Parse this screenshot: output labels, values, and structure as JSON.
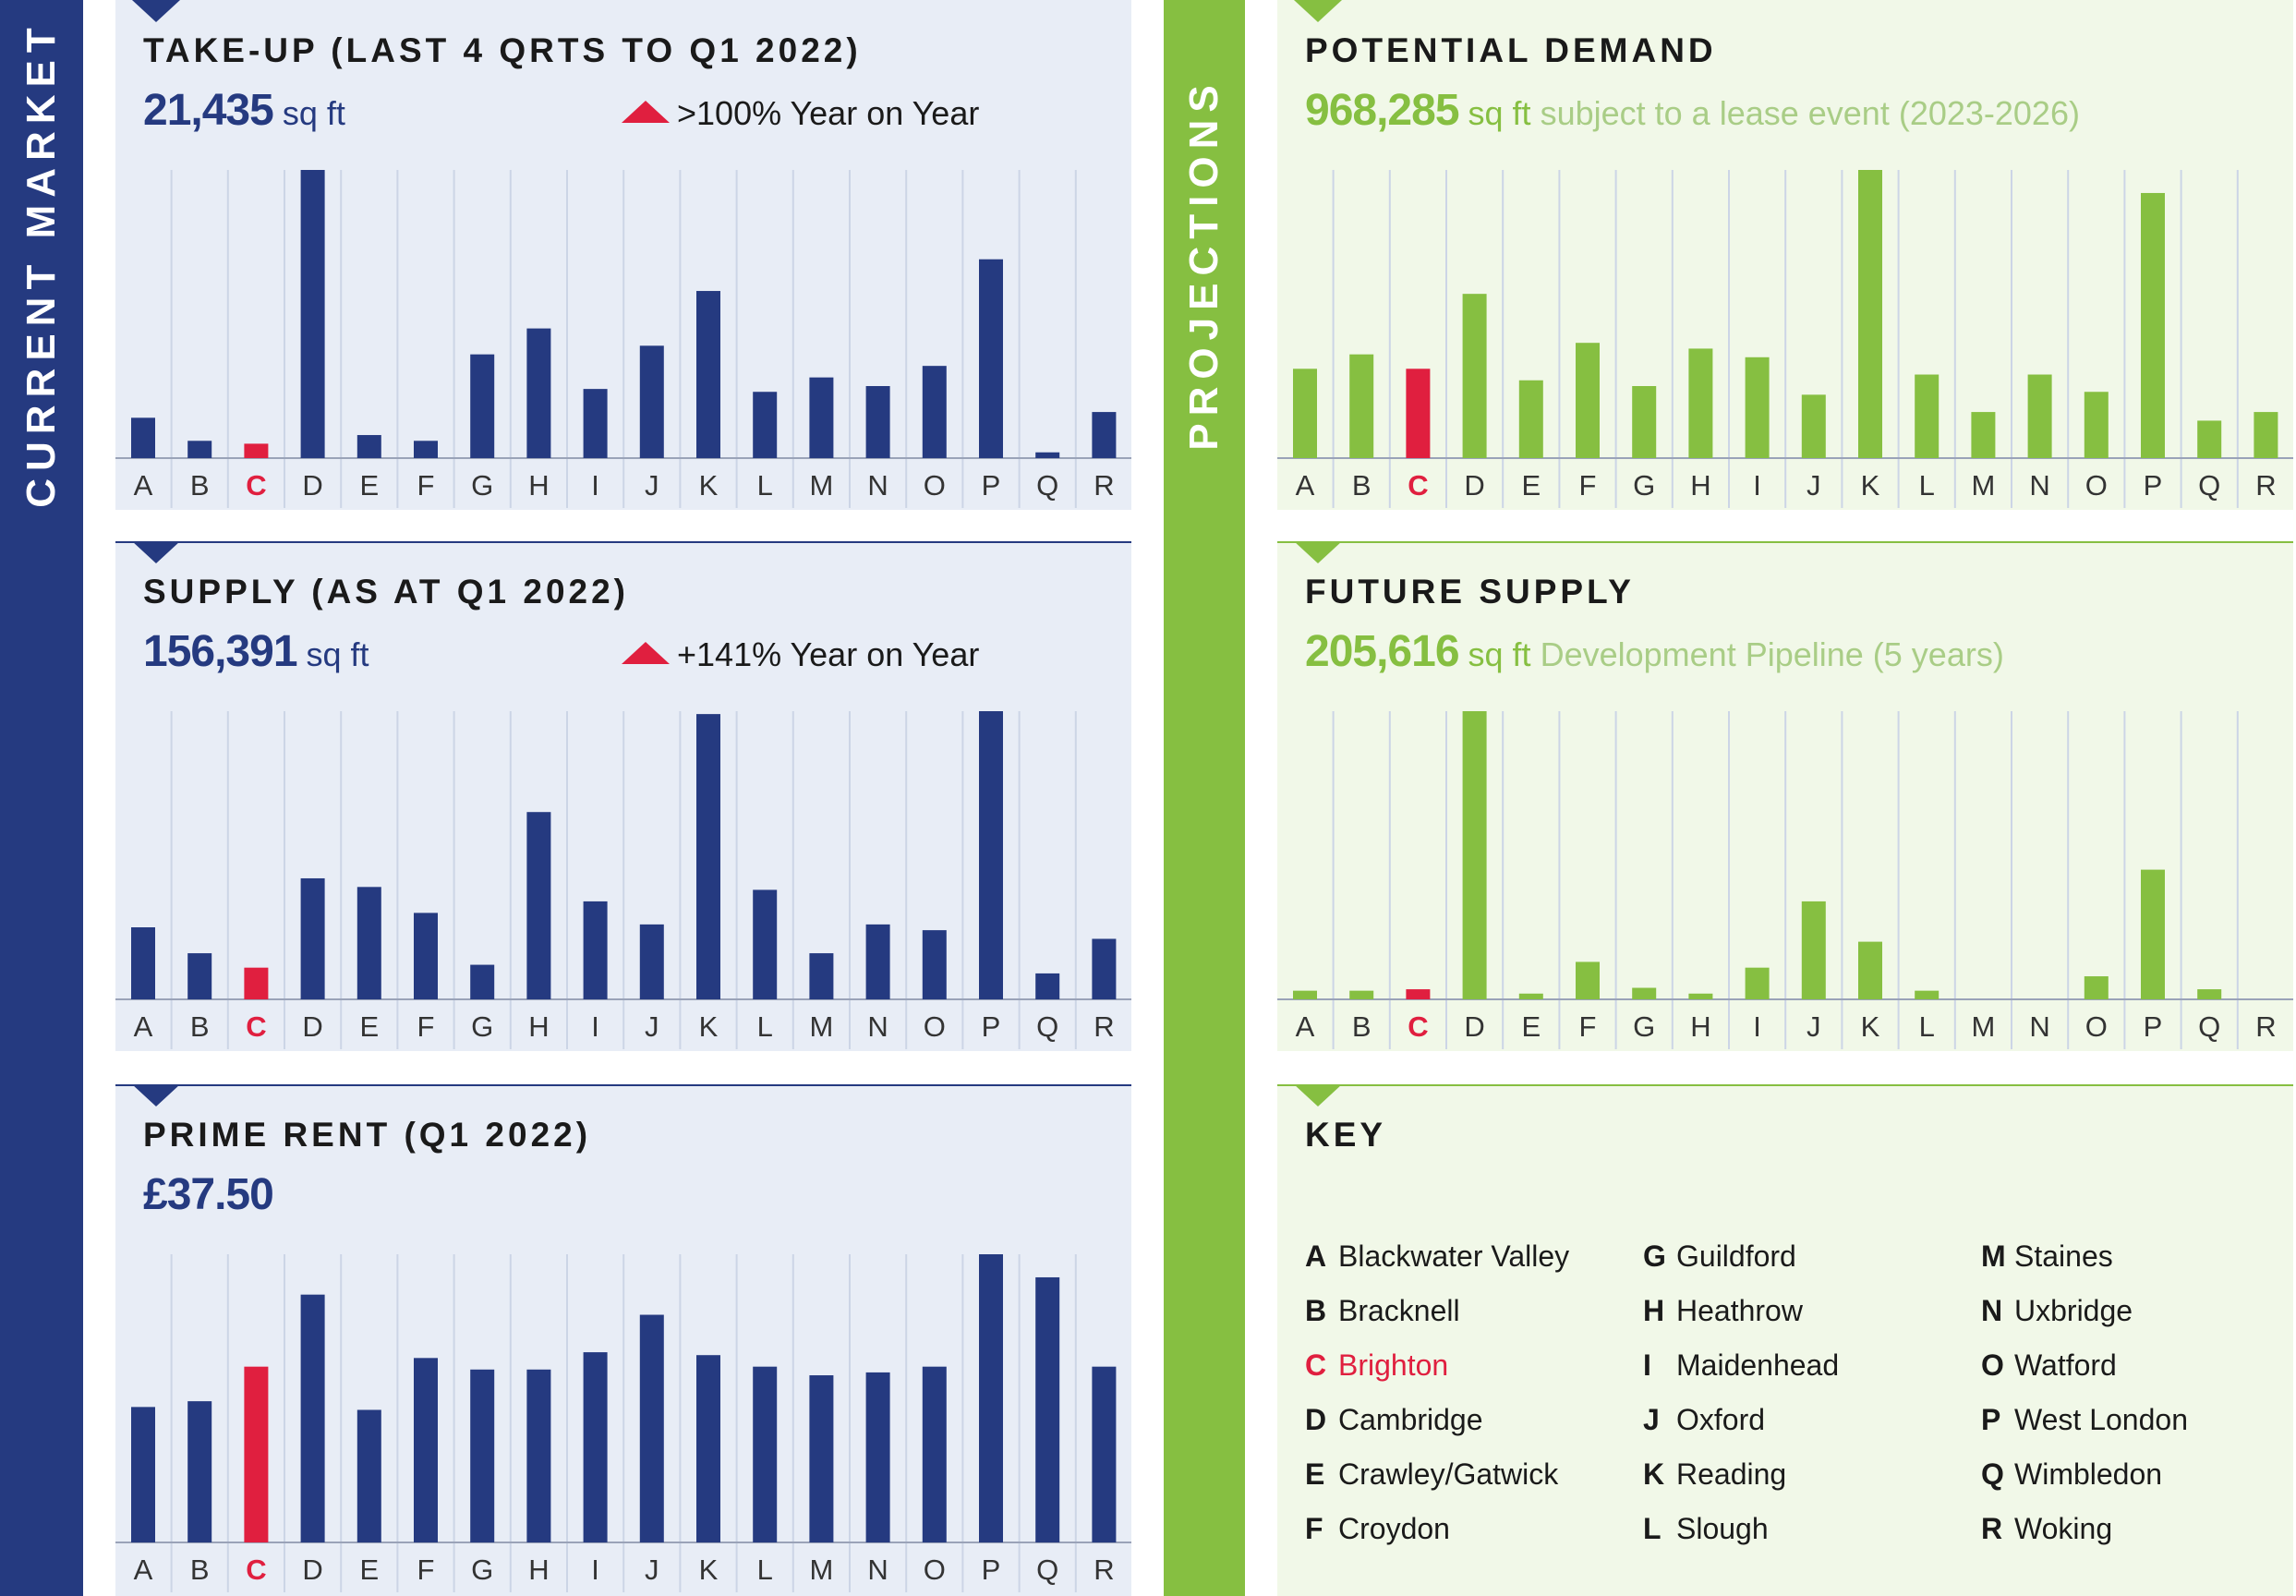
{
  "sections": {
    "left": "CURRENT MARKET",
    "right": "PROJECTIONS"
  },
  "colors": {
    "navy": "#253a80",
    "green": "#86bf41",
    "highlight": "#e01f3f",
    "gridline": "#ccd5e6"
  },
  "panels": {
    "takeup": {
      "title": "TAKE-UP (LAST 4 QRTS TO Q1 2022)",
      "value": "21,435",
      "unit": "sq ft",
      "change": ">100% Year on Year"
    },
    "supply": {
      "title": "SUPPLY (AS AT Q1 2022)",
      "value": "156,391",
      "unit": "sq ft",
      "change": "+141% Year on Year"
    },
    "rent": {
      "title": "PRIME RENT (Q1 2022)",
      "value": "£37.50"
    },
    "demand": {
      "title": "POTENTIAL DEMAND",
      "value": "968,285",
      "unit": "sq ft",
      "desc": "subject to a lease event (2023-2026)"
    },
    "future": {
      "title": "FUTURE SUPPLY",
      "value": "205,616",
      "unit": "sq ft",
      "desc": "Development Pipeline (5 years)"
    },
    "key": {
      "title": "KEY",
      "items": [
        {
          "letter": "A",
          "name": "Blackwater Valley"
        },
        {
          "letter": "B",
          "name": "Bracknell"
        },
        {
          "letter": "C",
          "name": "Brighton"
        },
        {
          "letter": "D",
          "name": "Cambridge"
        },
        {
          "letter": "E",
          "name": "Crawley/Gatwick"
        },
        {
          "letter": "F",
          "name": "Croydon"
        },
        {
          "letter": "G",
          "name": "Guildford"
        },
        {
          "letter": "H",
          "name": "Heathrow"
        },
        {
          "letter": "I",
          "name": "Maidenhead"
        },
        {
          "letter": "J",
          "name": "Oxford"
        },
        {
          "letter": "K",
          "name": "Reading"
        },
        {
          "letter": "L",
          "name": "Slough"
        },
        {
          "letter": "M",
          "name": "Staines"
        },
        {
          "letter": "N",
          "name": "Uxbridge"
        },
        {
          "letter": "O",
          "name": "Watford"
        },
        {
          "letter": "P",
          "name": "West London"
        },
        {
          "letter": "Q",
          "name": "Wimbledon"
        },
        {
          "letter": "R",
          "name": "Woking"
        }
      ]
    }
  },
  "chart_data": [
    {
      "type": "bar",
      "categories": [
        "A",
        "B",
        "C",
        "D",
        "E",
        "F",
        "G",
        "H",
        "I",
        "J",
        "K",
        "L",
        "M",
        "N",
        "O",
        "P",
        "Q",
        "R"
      ],
      "highlight": "C",
      "values": [
        14,
        6,
        5,
        100,
        8,
        6,
        36,
        45,
        24,
        39,
        58,
        23,
        28,
        25,
        32,
        69,
        2,
        16
      ],
      "ylim": [
        0,
        100
      ],
      "grid": true
    },
    {
      "type": "bar",
      "categories": [
        "A",
        "B",
        "C",
        "D",
        "E",
        "F",
        "G",
        "H",
        "I",
        "J",
        "K",
        "L",
        "M",
        "N",
        "O",
        "P",
        "Q",
        "R"
      ],
      "highlight": "C",
      "values": [
        25,
        16,
        11,
        42,
        39,
        30,
        12,
        65,
        34,
        26,
        99,
        38,
        16,
        26,
        24,
        100,
        9,
        21
      ],
      "ylim": [
        0,
        100
      ],
      "grid": true
    },
    {
      "type": "bar",
      "categories": [
        "A",
        "B",
        "C",
        "D",
        "E",
        "F",
        "G",
        "H",
        "I",
        "J",
        "K",
        "L",
        "M",
        "N",
        "O",
        "P",
        "Q",
        "R"
      ],
      "highlight": "C",
      "values": [
        47,
        49,
        61,
        86,
        46,
        64,
        60,
        60,
        66,
        79,
        65,
        61,
        58,
        59,
        61,
        100,
        92,
        61
      ],
      "ylim": [
        0,
        100
      ],
      "grid": true
    },
    {
      "type": "bar",
      "categories": [
        "A",
        "B",
        "C",
        "D",
        "E",
        "F",
        "G",
        "H",
        "I",
        "J",
        "K",
        "L",
        "M",
        "N",
        "O",
        "P",
        "Q",
        "R"
      ],
      "highlight": "C",
      "values": [
        31,
        36,
        31,
        57,
        27,
        40,
        25,
        38,
        35,
        22,
        100,
        29,
        16,
        29,
        23,
        92,
        13,
        16
      ],
      "ylim": [
        0,
        100
      ],
      "grid": true
    },
    {
      "type": "bar",
      "categories": [
        "A",
        "B",
        "C",
        "D",
        "E",
        "F",
        "G",
        "H",
        "I",
        "J",
        "K",
        "L",
        "M",
        "N",
        "O",
        "P",
        "Q",
        "R"
      ],
      "highlight": "C",
      "values": [
        3,
        3,
        3.5,
        100,
        2,
        13,
        4,
        2,
        11,
        34,
        20,
        3,
        0,
        0,
        8,
        45,
        3.5,
        0
      ],
      "ylim": [
        0,
        100
      ],
      "grid": true
    }
  ]
}
